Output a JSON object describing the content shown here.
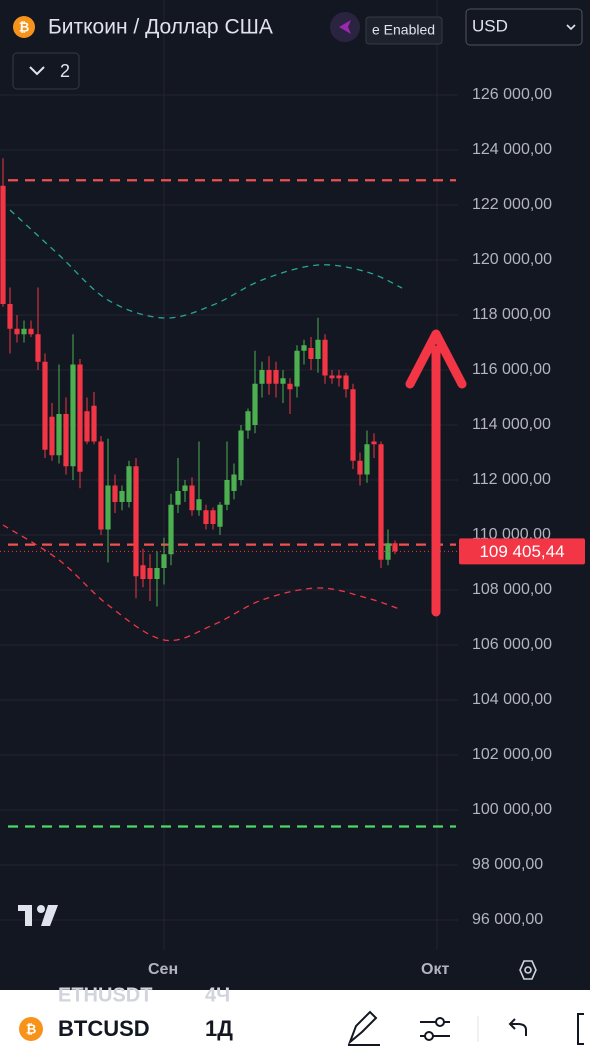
{
  "header": {
    "title": "Биткоин / Доллар США",
    "tooltip": "e Enabled",
    "currency": "USD",
    "collapse_count": "2"
  },
  "footer": {
    "symbol": "BTCUSD",
    "interval": "1Д",
    "ghost_symbol": "ETHUSDT",
    "ghost_interval": "4Ч"
  },
  "chart_data": {
    "type": "candlestick",
    "categories": [
      null,
      null,
      null,
      null,
      null,
      null,
      null,
      null,
      null,
      null,
      null,
      null,
      null,
      null,
      null,
      null,
      null,
      null,
      null,
      null,
      null,
      null,
      null,
      "Сен",
      null,
      null,
      null,
      null,
      null,
      null,
      null,
      null,
      null,
      null,
      null,
      null,
      null,
      null,
      null,
      null,
      null,
      null,
      null,
      null,
      null,
      null,
      null,
      null,
      null,
      null,
      null,
      null,
      null,
      null,
      null,
      null,
      null,
      null,
      null,
      null,
      null,
      null,
      "Окт"
    ],
    "open": [
      122700,
      118400,
      117500,
      117300,
      117500,
      117300,
      116300,
      114300,
      112900,
      114400,
      112500,
      116200,
      114500,
      114700,
      113400,
      110200,
      111800,
      111200,
      111200,
      112500,
      108900,
      108800,
      108400,
      108800,
      109300,
      111100,
      111600,
      111800,
      110900,
      110900,
      110900,
      110300,
      111100,
      111600,
      112000,
      113800,
      114000,
      115500,
      116000,
      116000,
      115500,
      115500,
      115400,
      116700,
      116800,
      116400,
      117100,
      115800,
      115800,
      115800,
      115300,
      112700,
      112200,
      113400,
      113300,
      109100,
      109700,
      null,
      null,
      null,
      null,
      null,
      null
    ],
    "high": [
      123700,
      119000,
      118000,
      117800,
      117800,
      119000,
      116600,
      114800,
      116200,
      115000,
      117300,
      116400,
      115000,
      115200,
      113600,
      113500,
      112200,
      111800,
      112700,
      112800,
      109500,
      109300,
      109400,
      109900,
      111500,
      112800,
      112000,
      112100,
      113400,
      111100,
      111000,
      111200,
      113400,
      112600,
      114000,
      114600,
      116700,
      116300,
      116500,
      116300,
      116000,
      115700,
      116900,
      117100,
      117200,
      117900,
      117300,
      116000,
      116000,
      115900,
      115500,
      113000,
      113800,
      113700,
      113400,
      110200,
      109800,
      null,
      null,
      null,
      null,
      null,
      null
    ],
    "low": [
      118300,
      116600,
      117000,
      117000,
      117200,
      116000,
      112800,
      112700,
      112600,
      112200,
      112000,
      111700,
      113300,
      113300,
      110000,
      109000,
      110800,
      110900,
      111000,
      107700,
      108100,
      107600,
      107400,
      108200,
      108900,
      110800,
      111200,
      110700,
      110700,
      110200,
      110200,
      110000,
      110900,
      111300,
      111800,
      113500,
      113700,
      115000,
      115100,
      115000,
      114800,
      114400,
      115000,
      116200,
      116000,
      115900,
      115500,
      115500,
      115400,
      115000,
      112400,
      111800,
      111900,
      112800,
      108800,
      108900,
      109300,
      null,
      null,
      null,
      null,
      null,
      null
    ],
    "close": [
      118400,
      117500,
      117300,
      117500,
      117300,
      116300,
      113100,
      112900,
      114400,
      112500,
      116200,
      112300,
      113400,
      113400,
      110200,
      111800,
      111200,
      111600,
      112500,
      108500,
      108400,
      108400,
      108800,
      109300,
      111100,
      111600,
      111800,
      110900,
      111300,
      110400,
      110400,
      111100,
      112000,
      112200,
      113800,
      114500,
      115500,
      116000,
      115500,
      115500,
      115700,
      115300,
      116700,
      116900,
      116400,
      117100,
      115800,
      115700,
      115700,
      115300,
      112700,
      112200,
      113300,
      113300,
      109100,
      109700,
      109405.44,
      null,
      null,
      null,
      null,
      null,
      null
    ],
    "up_color": "#4caf50",
    "down_color": "#f23645",
    "bands": [
      {
        "color": "#26a69a",
        "x": [
          1,
          8,
          15,
          23,
          30,
          37,
          45,
          52,
          57
        ],
        "values": [
          121818,
          120182,
          118545,
          117891,
          118364,
          119273,
          119818,
          119564,
          118982
        ]
      },
      {
        "color": "#f23645",
        "x": [
          0,
          8,
          15,
          23,
          30,
          37,
          45,
          52,
          57
        ],
        "values": [
          110364,
          109091,
          107455,
          106182,
          106727,
          107636,
          108073,
          107709,
          107273
        ]
      }
    ],
    "levels": [
      {
        "value": 122900,
        "color": "#f0504f"
      },
      {
        "value": 109650,
        "color": "#f0504f"
      },
      {
        "value": 99400,
        "color": "#4cd964"
      }
    ],
    "last_price": {
      "value": 109405.44,
      "label": "109 405,44"
    },
    "ylim": [
      95000,
      127500
    ],
    "yticks": [
      {
        "value": 96000,
        "label": "96 000,00"
      },
      {
        "value": 98000,
        "label": "98 000,00"
      },
      {
        "value": 100000,
        "label": "100 000,00"
      },
      {
        "value": 102000,
        "label": "102 000,00"
      },
      {
        "value": 104000,
        "label": "104 000,00"
      },
      {
        "value": 106000,
        "label": "106 000,00"
      },
      {
        "value": 108000,
        "label": "108 000,00"
      },
      {
        "value": 110000,
        "label": "110 000,00"
      },
      {
        "value": 112000,
        "label": "112 000,00"
      },
      {
        "value": 114000,
        "label": "114 000,00"
      },
      {
        "value": 116000,
        "label": "116 000,00"
      },
      {
        "value": 118000,
        "label": "118 000,00"
      },
      {
        "value": 120000,
        "label": "120 000,00"
      },
      {
        "value": 122000,
        "label": "122 000,00"
      },
      {
        "value": 124000,
        "label": "124 000,00"
      },
      {
        "value": 126000,
        "label": "126 000,00"
      }
    ],
    "grid": true
  }
}
